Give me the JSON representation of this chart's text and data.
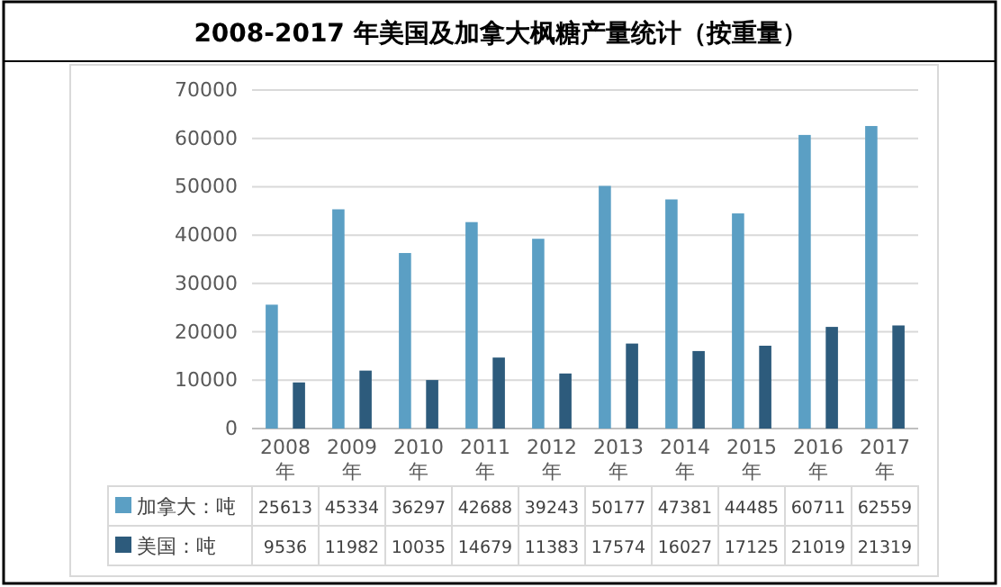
{
  "chart_data": {
    "type": "bar",
    "title": "2008-2017 年美国及加拿大枫糖产量统计（按重量）",
    "categories": [
      "2008年",
      "2009年",
      "2010年",
      "2011年",
      "2012年",
      "2013年",
      "2014年",
      "2015年",
      "2016年",
      "2017年"
    ],
    "series": [
      {
        "name": "加拿大：吨",
        "color": "#5b9fc4",
        "values": [
          25613,
          45334,
          36297,
          42688,
          39243,
          50177,
          47381,
          44485,
          60711,
          62559
        ],
        "value_labels": [
          "25613",
          "45334",
          "36297",
          "42688",
          "39243",
          "50177",
          "47381",
          "44485",
          "60711",
          "62559"
        ]
      },
      {
        "name": "美国：吨",
        "color": "#2d5b7c",
        "values": [
          9536,
          11982,
          10035,
          14679,
          11383,
          17574,
          16027,
          17125,
          21019,
          21319
        ],
        "value_labels": [
          "9536",
          "11982",
          "10035",
          "14679",
          "11383",
          "17574",
          "16027",
          "17125",
          "21019",
          "21319"
        ]
      }
    ],
    "ylim": [
      0,
      70000
    ],
    "yticks": [
      0,
      10000,
      20000,
      30000,
      40000,
      50000,
      60000,
      70000
    ],
    "grid": "y",
    "legend": "bottom"
  }
}
